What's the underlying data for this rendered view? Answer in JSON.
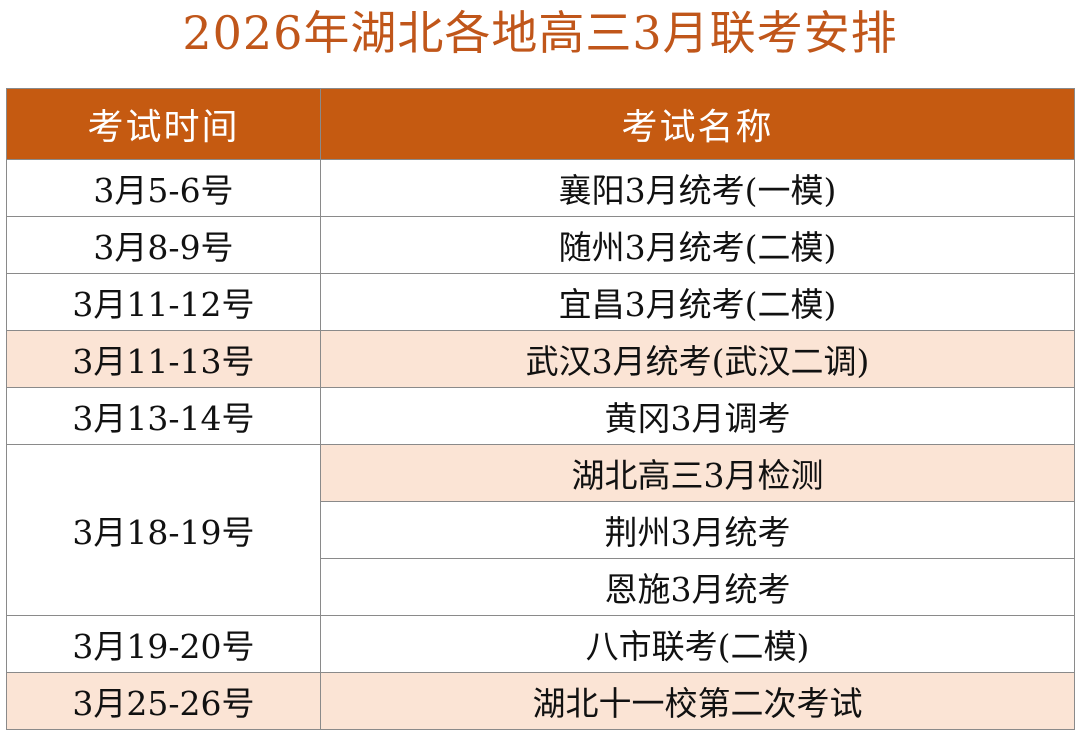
{
  "title": "2026年湖北各地高三3月联考安排",
  "table": {
    "headers": [
      "考试时间",
      "考试名称"
    ],
    "rows": [
      {
        "time": "3月5-6号",
        "name": "襄阳3月统考(一模)"
      },
      {
        "time": "3月8-9号",
        "name": "随州3月统考(二模)"
      },
      {
        "time": "3月11-12号",
        "name": "宜昌3月统考(二模)"
      },
      {
        "time": "3月11-13号",
        "name": "武汉3月统考(武汉二调)"
      },
      {
        "time": "3月13-14号",
        "name": "黄冈3月调考"
      },
      {
        "time": "3月18-19号",
        "names": [
          "湖北高三3月检测",
          "荆州3月统考",
          "恩施3月统考"
        ]
      },
      {
        "time": "3月19-20号",
        "name": "八市联考(二模)"
      },
      {
        "time": "3月25-26号",
        "name": "湖北十一校第二次考试"
      }
    ]
  },
  "colors": {
    "title": "#c0561a",
    "header_bg": "#c55a11",
    "highlight_row": "#fbe4d5"
  }
}
